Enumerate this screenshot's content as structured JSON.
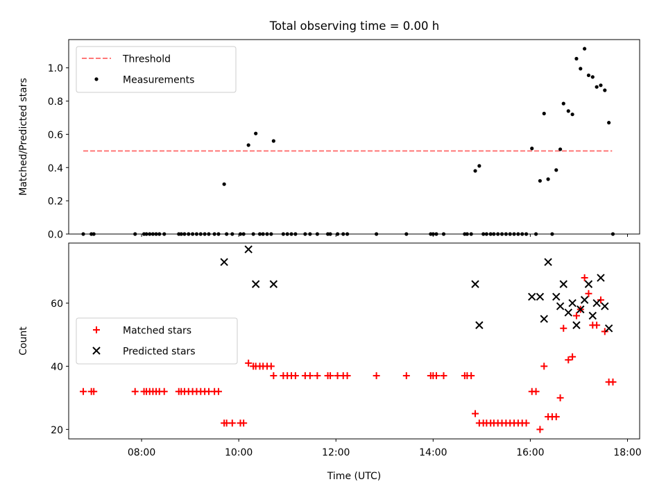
{
  "figure": {
    "title": "Total observing time = 0.00 h"
  },
  "colors": {
    "threshold": "#ff7777",
    "measurements": "#000000",
    "matched": "#ff0000",
    "predicted": "#000000"
  },
  "chart_data": [
    {
      "type": "scatter",
      "title": "Total observing time = 0.00 h",
      "xlabel": "",
      "ylabel": "Matched/Predicted stars",
      "xlim": [
        "06:30",
        "18:15"
      ],
      "ylim": [
        0,
        1.17
      ],
      "yticks": [
        "0.0",
        "0.2",
        "0.4",
        "0.6",
        "0.8",
        "1.0"
      ],
      "ytick_values": [
        0,
        0.2,
        0.4,
        0.6,
        0.8,
        1.0
      ],
      "xticks": [
        "08:00",
        "10:00",
        "12:00",
        "14:00",
        "16:00",
        "18:00"
      ],
      "grid": false,
      "legend": {
        "position": "top-left",
        "entries": [
          "Threshold",
          "Measurements"
        ]
      },
      "threshold": {
        "name": "Threshold",
        "y": 0.5,
        "x_start": "06:48",
        "x_end": "17:41",
        "style": "dashed"
      },
      "series": [
        {
          "name": "Measurements",
          "marker": "dot",
          "points": [
            [
              "06:48",
              0
            ],
            [
              "06:58",
              0
            ],
            [
              "07:01",
              0
            ],
            [
              "07:52",
              0
            ],
            [
              "08:03",
              0
            ],
            [
              "08:06",
              0
            ],
            [
              "08:10",
              0
            ],
            [
              "08:14",
              0
            ],
            [
              "08:18",
              0
            ],
            [
              "08:22",
              0
            ],
            [
              "08:28",
              0
            ],
            [
              "08:46",
              0
            ],
            [
              "08:49",
              0
            ],
            [
              "08:53",
              0
            ],
            [
              "08:58",
              0
            ],
            [
              "09:03",
              0
            ],
            [
              "09:08",
              0
            ],
            [
              "09:13",
              0
            ],
            [
              "09:18",
              0
            ],
            [
              "09:23",
              0
            ],
            [
              "09:30",
              0
            ],
            [
              "09:35",
              0
            ],
            [
              "09:42",
              0.3
            ],
            [
              "09:45",
              0
            ],
            [
              "09:52",
              0
            ],
            [
              "10:02",
              0
            ],
            [
              "10:06",
              0
            ],
            [
              "10:12",
              0.535
            ],
            [
              "10:18",
              0
            ],
            [
              "10:21",
              0.605
            ],
            [
              "10:26",
              0
            ],
            [
              "10:30",
              0
            ],
            [
              "10:35",
              0
            ],
            [
              "10:40",
              0
            ],
            [
              "10:43",
              0.56
            ],
            [
              "10:55",
              0
            ],
            [
              "11:00",
              0
            ],
            [
              "11:05",
              0
            ],
            [
              "11:10",
              0
            ],
            [
              "11:22",
              0
            ],
            [
              "11:28",
              0
            ],
            [
              "11:37",
              0
            ],
            [
              "11:50",
              0
            ],
            [
              "11:53",
              0
            ],
            [
              "12:02",
              0
            ],
            [
              "12:09",
              0
            ],
            [
              "12:14",
              0
            ],
            [
              "12:50",
              0
            ],
            [
              "13:27",
              0
            ],
            [
              "13:57",
              0
            ],
            [
              "14:00",
              0
            ],
            [
              "14:04",
              0
            ],
            [
              "14:13",
              0
            ],
            [
              "14:39",
              0
            ],
            [
              "14:42",
              0
            ],
            [
              "14:47",
              0
            ],
            [
              "14:52",
              0.38
            ],
            [
              "14:57",
              0.41
            ],
            [
              "15:02",
              0
            ],
            [
              "15:06",
              0
            ],
            [
              "15:11",
              0
            ],
            [
              "15:15",
              0
            ],
            [
              "15:20",
              0
            ],
            [
              "15:25",
              0
            ],
            [
              "15:30",
              0
            ],
            [
              "15:35",
              0
            ],
            [
              "15:40",
              0
            ],
            [
              "15:45",
              0
            ],
            [
              "15:50",
              0
            ],
            [
              "15:55",
              0
            ],
            [
              "16:02",
              0.515
            ],
            [
              "16:07",
              0
            ],
            [
              "16:12",
              0.32
            ],
            [
              "16:17",
              0.725
            ],
            [
              "16:22",
              0.33
            ],
            [
              "16:27",
              0
            ],
            [
              "16:32",
              0.385
            ],
            [
              "16:37",
              0.51
            ],
            [
              "16:41",
              0.785
            ],
            [
              "16:47",
              0.74
            ],
            [
              "16:52",
              0.72
            ],
            [
              "16:57",
              1.055
            ],
            [
              "17:02",
              0.995
            ],
            [
              "17:07",
              1.115
            ],
            [
              "17:12",
              0.955
            ],
            [
              "17:17",
              0.945
            ],
            [
              "17:22",
              0.885
            ],
            [
              "17:27",
              0.895
            ],
            [
              "17:32",
              0.865
            ],
            [
              "17:37",
              0.67
            ],
            [
              "17:42",
              0
            ]
          ]
        }
      ]
    },
    {
      "type": "scatter",
      "title": "",
      "xlabel": "Time (UTC)",
      "ylabel": "Count",
      "xlim": [
        "06:30",
        "18:15"
      ],
      "ylim": [
        17,
        79
      ],
      "yticks": [
        "20",
        "40",
        "60"
      ],
      "ytick_values": [
        20,
        40,
        60
      ],
      "xticks": [
        "08:00",
        "10:00",
        "12:00",
        "14:00",
        "16:00",
        "18:00"
      ],
      "grid": false,
      "legend": {
        "position": "center-left",
        "entries": [
          "Matched stars",
          "Predicted stars"
        ]
      },
      "series": [
        {
          "name": "Matched stars",
          "marker": "plus",
          "points": [
            [
              "06:48",
              32
            ],
            [
              "06:58",
              32
            ],
            [
              "07:01",
              32
            ],
            [
              "07:52",
              32
            ],
            [
              "08:03",
              32
            ],
            [
              "08:06",
              32
            ],
            [
              "08:10",
              32
            ],
            [
              "08:14",
              32
            ],
            [
              "08:18",
              32
            ],
            [
              "08:22",
              32
            ],
            [
              "08:28",
              32
            ],
            [
              "08:46",
              32
            ],
            [
              "08:49",
              32
            ],
            [
              "08:53",
              32
            ],
            [
              "08:58",
              32
            ],
            [
              "09:03",
              32
            ],
            [
              "09:08",
              32
            ],
            [
              "09:13",
              32
            ],
            [
              "09:18",
              32
            ],
            [
              "09:23",
              32
            ],
            [
              "09:30",
              32
            ],
            [
              "09:35",
              32
            ],
            [
              "09:42",
              22
            ],
            [
              "09:45",
              22
            ],
            [
              "09:52",
              22
            ],
            [
              "10:02",
              22
            ],
            [
              "10:06",
              22
            ],
            [
              "10:12",
              41
            ],
            [
              "10:18",
              40
            ],
            [
              "10:21",
              40
            ],
            [
              "10:26",
              40
            ],
            [
              "10:30",
              40
            ],
            [
              "10:35",
              40
            ],
            [
              "10:40",
              40
            ],
            [
              "10:43",
              37
            ],
            [
              "10:55",
              37
            ],
            [
              "11:00",
              37
            ],
            [
              "11:05",
              37
            ],
            [
              "11:10",
              37
            ],
            [
              "11:22",
              37
            ],
            [
              "11:28",
              37
            ],
            [
              "11:37",
              37
            ],
            [
              "11:50",
              37
            ],
            [
              "11:53",
              37
            ],
            [
              "12:02",
              37
            ],
            [
              "12:09",
              37
            ],
            [
              "12:14",
              37
            ],
            [
              "12:50",
              37
            ],
            [
              "13:27",
              37
            ],
            [
              "13:57",
              37
            ],
            [
              "14:00",
              37
            ],
            [
              "14:04",
              37
            ],
            [
              "14:13",
              37
            ],
            [
              "14:39",
              37
            ],
            [
              "14:42",
              37
            ],
            [
              "14:47",
              37
            ],
            [
              "14:52",
              25
            ],
            [
              "14:57",
              22
            ],
            [
              "15:02",
              22
            ],
            [
              "15:06",
              22
            ],
            [
              "15:11",
              22
            ],
            [
              "15:15",
              22
            ],
            [
              "15:20",
              22
            ],
            [
              "15:25",
              22
            ],
            [
              "15:30",
              22
            ],
            [
              "15:35",
              22
            ],
            [
              "15:40",
              22
            ],
            [
              "15:45",
              22
            ],
            [
              "15:50",
              22
            ],
            [
              "15:55",
              22
            ],
            [
              "16:02",
              32
            ],
            [
              "16:07",
              32
            ],
            [
              "16:12",
              20
            ],
            [
              "16:17",
              40
            ],
            [
              "16:22",
              24
            ],
            [
              "16:27",
              24
            ],
            [
              "16:32",
              24
            ],
            [
              "16:37",
              30
            ],
            [
              "16:41",
              52
            ],
            [
              "16:47",
              42
            ],
            [
              "16:52",
              43
            ],
            [
              "16:57",
              56
            ],
            [
              "17:02",
              58
            ],
            [
              "17:07",
              68
            ],
            [
              "17:12",
              63
            ],
            [
              "17:17",
              53
            ],
            [
              "17:22",
              53
            ],
            [
              "17:27",
              61
            ],
            [
              "17:32",
              51
            ],
            [
              "17:37",
              35
            ],
            [
              "17:42",
              35
            ]
          ]
        },
        {
          "name": "Predicted stars",
          "marker": "x",
          "points": [
            [
              "09:42",
              73
            ],
            [
              "10:12",
              77
            ],
            [
              "10:21",
              66
            ],
            [
              "10:43",
              66
            ],
            [
              "14:52",
              66
            ],
            [
              "14:57",
              53
            ],
            [
              "16:02",
              62
            ],
            [
              "16:12",
              62
            ],
            [
              "16:17",
              55
            ],
            [
              "16:22",
              73
            ],
            [
              "16:32",
              62
            ],
            [
              "16:37",
              59
            ],
            [
              "16:41",
              66
            ],
            [
              "16:47",
              57
            ],
            [
              "16:52",
              60
            ],
            [
              "16:57",
              53
            ],
            [
              "17:02",
              58
            ],
            [
              "17:07",
              61
            ],
            [
              "17:12",
              66
            ],
            [
              "17:17",
              56
            ],
            [
              "17:22",
              60
            ],
            [
              "17:27",
              68
            ],
            [
              "17:32",
              59
            ],
            [
              "17:37",
              52
            ]
          ]
        }
      ]
    }
  ]
}
